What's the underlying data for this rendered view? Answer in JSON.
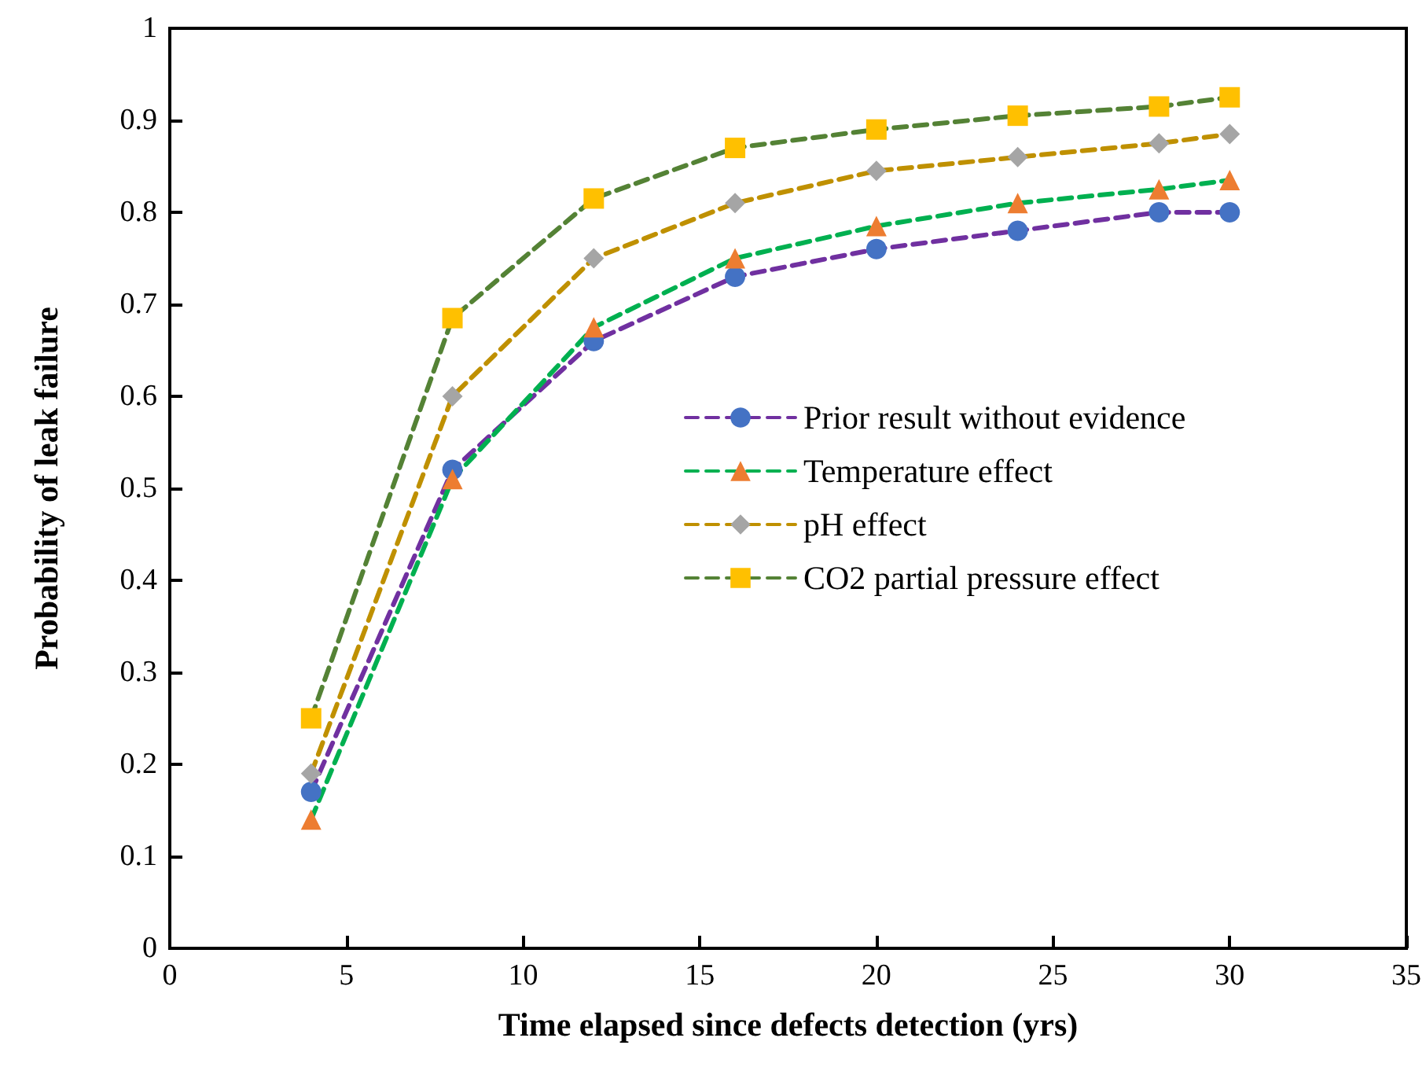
{
  "chart_data": {
    "type": "line",
    "xlabel": "Time elapsed since defects detection (yrs)",
    "ylabel": "Probability of leak failure",
    "x": [
      4,
      8,
      12,
      16,
      20,
      24,
      28,
      30
    ],
    "series": [
      {
        "name": "Prior result without evidence",
        "color": "#7030a0",
        "colors": [
          "#4472c4",
          "#4472c4",
          "#4472c4",
          "#4472c4",
          "#4472c4",
          "#4472c4",
          "#4472c4",
          "#4472c4"
        ],
        "marker": "circle",
        "line_style": "dashed",
        "values": [
          0.17,
          0.52,
          0.66,
          0.73,
          0.76,
          0.78,
          0.8,
          0.8
        ]
      },
      {
        "name": "Temperature effect",
        "color": "#00b050",
        "colors": [
          "#ed7d31",
          "#ed7d31",
          "#ed7d31",
          "#ed7d31",
          "#ed7d31",
          "#ed7d31",
          "#ed7d31",
          "#ed7d31"
        ],
        "marker": "triangle",
        "line_style": "dashed",
        "values": [
          0.14,
          0.51,
          0.675,
          0.75,
          0.785,
          0.81,
          0.825,
          0.835
        ]
      },
      {
        "name": "pH effect",
        "color": "#bf9000",
        "colors": [
          "#a5a5a5",
          "#a5a5a5",
          "#a5a5a5",
          "#a5a5a5",
          "#a5a5a5",
          "#a5a5a5",
          "#a5a5a5",
          "#a5a5a5"
        ],
        "marker": "diamond",
        "line_style": "dashed",
        "values": [
          0.19,
          0.6,
          0.75,
          0.81,
          0.845,
          0.86,
          0.875,
          0.885
        ]
      },
      {
        "name": "CO2 partial pressure effect",
        "color": "#548235",
        "colors": [
          "#ffc000",
          "#ffc000",
          "#ffc000",
          "#ffc000",
          "#ffc000",
          "#ffc000",
          "#ffc000",
          "#ffc000"
        ],
        "marker": "square",
        "line_style": "dashed",
        "values": [
          0.25,
          0.685,
          0.815,
          0.87,
          0.89,
          0.905,
          0.915,
          0.925
        ]
      }
    ],
    "xlim": [
      0,
      35
    ],
    "xticks": [
      0,
      5,
      10,
      15,
      20,
      25,
      30,
      35
    ],
    "ylim": [
      0,
      1
    ],
    "yticks": [
      0,
      0.1,
      0.2,
      0.3,
      0.4,
      0.5,
      0.6,
      0.7,
      0.8,
      0.9,
      1
    ],
    "grid": false,
    "legend": "right"
  }
}
